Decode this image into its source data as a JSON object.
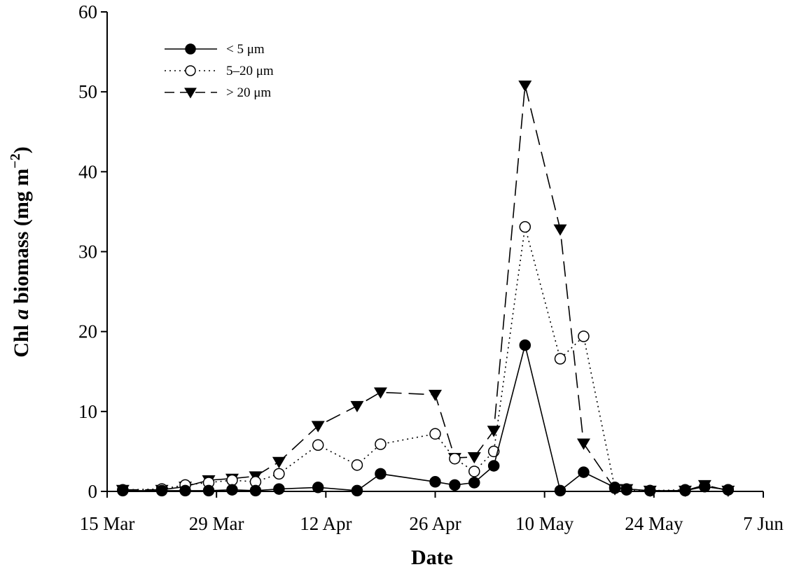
{
  "chart_data": {
    "type": "line",
    "title": "",
    "xlabel": "Date",
    "ylabel_main": "Chl ",
    "ylabel_italic": "a",
    "ylabel_rest": " biomass (mg m",
    "ylabel_sup": "−2",
    "ylabel_close": ")",
    "ylim": [
      0,
      60
    ],
    "yticks": [
      0,
      10,
      20,
      30,
      40,
      50,
      60
    ],
    "xlim": [
      0,
      84
    ],
    "xticks": [
      {
        "day": 0,
        "label": "15 Mar"
      },
      {
        "day": 14,
        "label": "29 Mar"
      },
      {
        "day": 28,
        "label": "12 Apr"
      },
      {
        "day": 42,
        "label": "26 Apr"
      },
      {
        "day": 56,
        "label": "10 May"
      },
      {
        "day": 70,
        "label": "24 May"
      },
      {
        "day": 84,
        "label": "7 Jun"
      }
    ],
    "legend_position": "top-left",
    "series": [
      {
        "name": "< 5 μm",
        "marker": "filled-circle",
        "line": "solid",
        "points": [
          [
            2,
            0.1
          ],
          [
            7,
            0.1
          ],
          [
            10,
            0.1
          ],
          [
            13,
            0.1
          ],
          [
            16,
            0.2
          ],
          [
            19,
            0.1
          ],
          [
            22,
            0.3
          ],
          [
            27,
            0.5
          ],
          [
            32,
            0.1
          ],
          [
            35,
            2.2
          ],
          [
            42,
            1.2
          ],
          [
            44.5,
            0.8
          ],
          [
            47,
            1.1
          ],
          [
            49.5,
            3.2
          ],
          [
            53.5,
            18.3
          ],
          [
            58,
            0.1
          ],
          [
            61,
            2.4
          ],
          [
            65,
            0.5
          ],
          [
            66.5,
            0.3
          ],
          [
            69.5,
            0.1
          ],
          [
            74,
            0.1
          ],
          [
            76.5,
            0.6
          ],
          [
            79.5,
            0.2
          ]
        ]
      },
      {
        "name": "5–20 μm",
        "marker": "open-circle",
        "line": "dotted",
        "points": [
          [
            2,
            0.2
          ],
          [
            7,
            0.3
          ],
          [
            10,
            0.8
          ],
          [
            13,
            1.1
          ],
          [
            16,
            1.4
          ],
          [
            19,
            1.2
          ],
          [
            22,
            2.2
          ],
          [
            27,
            5.8
          ],
          [
            32,
            3.3
          ],
          [
            35,
            5.9
          ],
          [
            42,
            7.2
          ],
          [
            44.5,
            4.1
          ],
          [
            47,
            2.5
          ],
          [
            49.5,
            5.0
          ],
          [
            53.5,
            33.1
          ],
          [
            58,
            16.6
          ],
          [
            61,
            19.4
          ],
          [
            65,
            0.4
          ],
          [
            66.5,
            0.2
          ],
          [
            69.5,
            0.1
          ],
          [
            74,
            0.2
          ],
          [
            76.5,
            0.6
          ],
          [
            79.5,
            0.2
          ]
        ]
      },
      {
        "name": "> 20 μm",
        "marker": "filled-triangle-down",
        "line": "dashed",
        "points": [
          [
            2,
            0.2
          ],
          [
            7,
            0.2
          ],
          [
            10,
            0.6
          ],
          [
            13,
            1.4
          ],
          [
            16,
            1.6
          ],
          [
            19,
            1.9
          ],
          [
            22,
            3.7
          ],
          [
            27,
            8.2
          ],
          [
            32,
            10.7
          ],
          [
            35,
            12.4
          ],
          [
            42,
            12.1
          ],
          [
            44.5,
            4.2
          ],
          [
            47,
            4.3
          ],
          [
            49.5,
            7.6
          ],
          [
            53.5,
            50.8
          ],
          [
            58,
            32.8
          ],
          [
            61,
            6.0
          ],
          [
            65,
            0.3
          ],
          [
            66.5,
            0.3
          ],
          [
            69.5,
            0.1
          ],
          [
            74,
            0.1
          ],
          [
            76.5,
            0.8
          ],
          [
            79.5,
            0.1
          ]
        ]
      }
    ]
  }
}
